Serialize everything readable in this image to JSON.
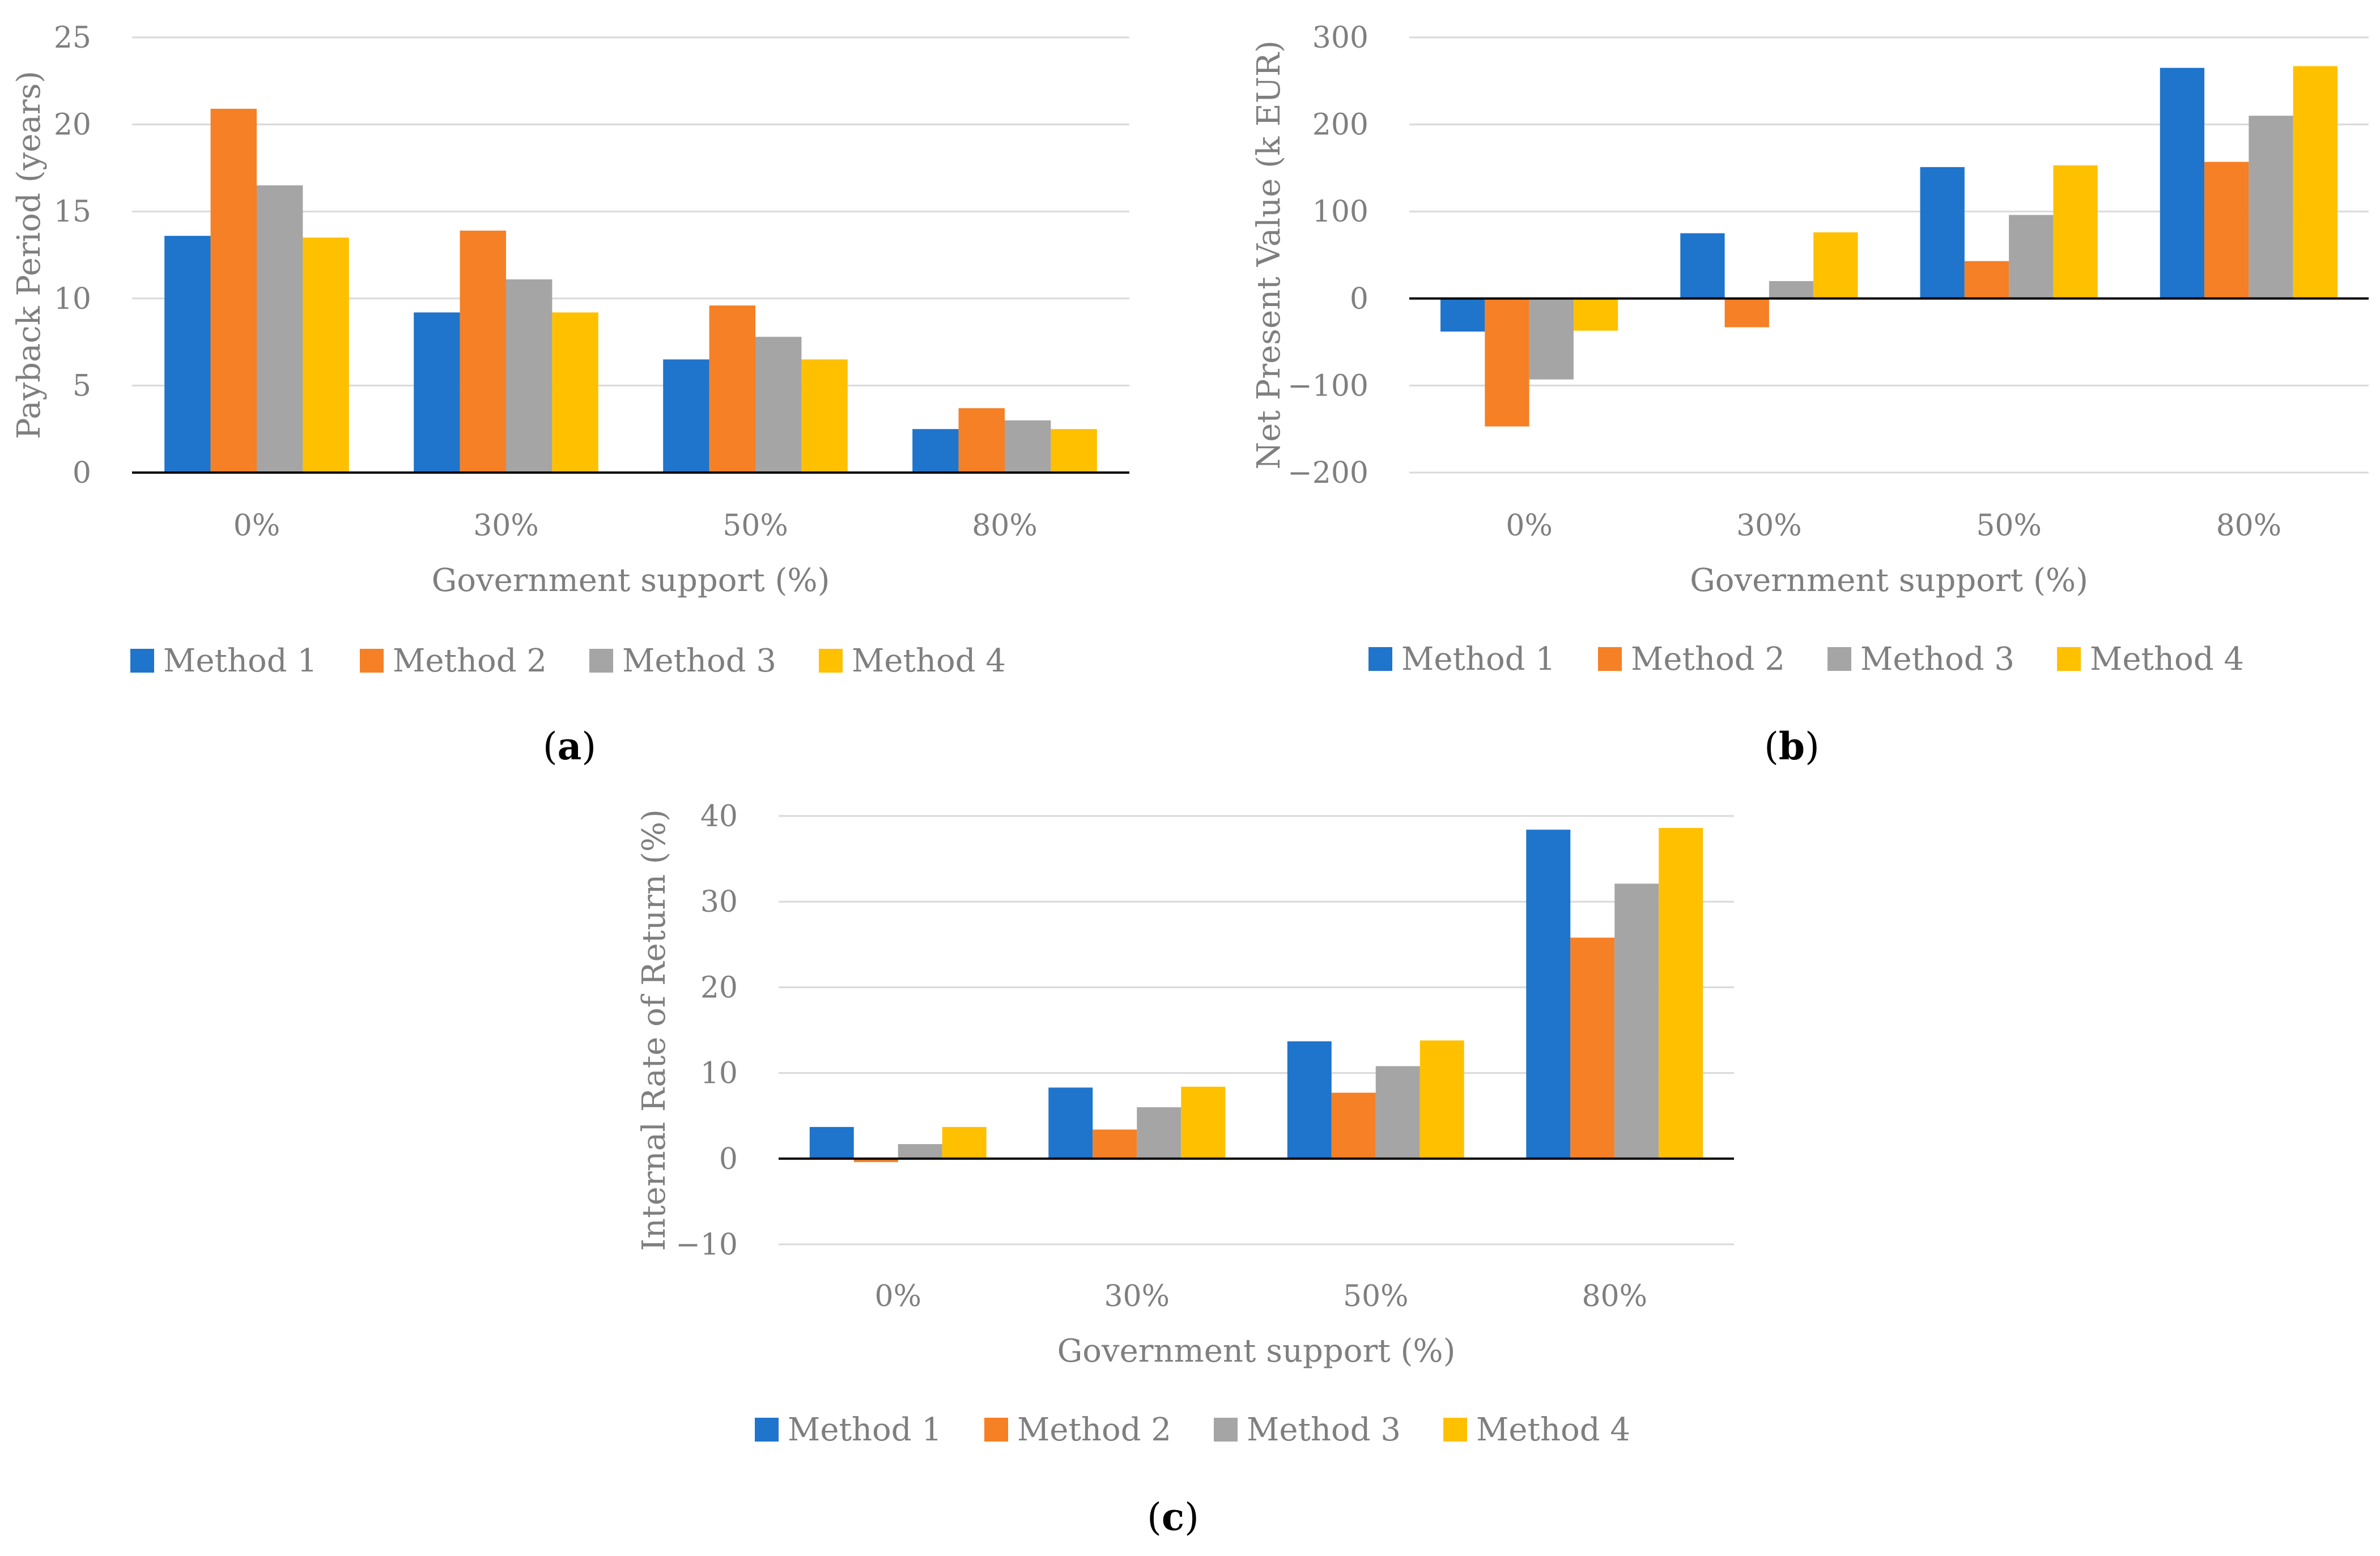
{
  "colors": {
    "method1": "#1f74cc",
    "method2": "#f58025",
    "method3": "#a5a5a5",
    "method4": "#ffc000",
    "text": "#7f7f7f"
  },
  "legend": [
    "Method 1",
    "Method 2",
    "Method 3",
    "Method 4"
  ],
  "chart_data": [
    {
      "type": "bar",
      "caption_letter": "a",
      "title": "",
      "categories": [
        "0%",
        "30%",
        "50%",
        "80%"
      ],
      "xlabel": "Government support (%)",
      "ylabel": "Payback Period (years)",
      "ylim": [
        0,
        25
      ],
      "yticks": [
        0,
        5,
        10,
        15,
        20,
        25
      ],
      "grid": true,
      "legend_position": "bottom",
      "series": [
        {
          "name": "Method 1",
          "values": [
            13.6,
            9.2,
            6.5,
            2.5
          ]
        },
        {
          "name": "Method 2",
          "values": [
            20.9,
            13.9,
            9.6,
            3.7
          ]
        },
        {
          "name": "Method 3",
          "values": [
            16.5,
            11.1,
            7.8,
            3.0
          ]
        },
        {
          "name": "Method 4",
          "values": [
            13.5,
            9.2,
            6.5,
            2.5
          ]
        }
      ]
    },
    {
      "type": "bar",
      "caption_letter": "b",
      "title": "",
      "categories": [
        "0%",
        "30%",
        "50%",
        "80%"
      ],
      "xlabel": "Government support (%)",
      "ylabel": "Net Present Value (k EUR)",
      "ylim": [
        -200,
        300
      ],
      "yticks": [
        -200,
        -100,
        0,
        100,
        200,
        300
      ],
      "grid": true,
      "legend_position": "bottom",
      "series": [
        {
          "name": "Method 1",
          "values": [
            -38,
            75,
            151,
            265
          ]
        },
        {
          "name": "Method 2",
          "values": [
            -147,
            -33,
            43,
            157
          ]
        },
        {
          "name": "Method 3",
          "values": [
            -93,
            20,
            96,
            210
          ]
        },
        {
          "name": "Method 4",
          "values": [
            -37,
            76,
            153,
            267
          ]
        }
      ]
    },
    {
      "type": "bar",
      "caption_letter": "c",
      "title": "",
      "categories": [
        "0%",
        "30%",
        "50%",
        "80%"
      ],
      "xlabel": "Government support (%)",
      "ylabel": "Internal Rate of Return (%)",
      "ylim": [
        -10,
        40
      ],
      "yticks": [
        -10,
        0,
        10,
        20,
        30,
        40
      ],
      "grid": true,
      "legend_position": "bottom",
      "series": [
        {
          "name": "Method 1",
          "values": [
            3.7,
            8.3,
            13.7,
            38.4
          ]
        },
        {
          "name": "Method 2",
          "values": [
            -0.4,
            3.4,
            7.7,
            25.8
          ]
        },
        {
          "name": "Method 3",
          "values": [
            1.7,
            6.0,
            10.8,
            32.1
          ]
        },
        {
          "name": "Method 4",
          "values": [
            3.7,
            8.4,
            13.8,
            38.6
          ]
        }
      ]
    }
  ]
}
